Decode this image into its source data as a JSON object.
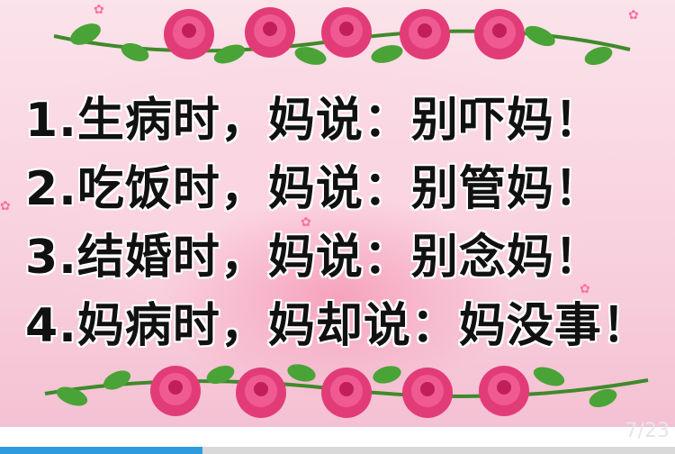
{
  "slide": {
    "lines": [
      "1.生病时，妈说：别吓妈！",
      "2.吃饭时，妈说：别管妈！",
      "3.结婚时，妈说：别念妈！",
      "4.妈病时，妈却说：妈没事！"
    ],
    "decoration": "pink-rose-garland",
    "colors": {
      "rose": "#e23c78",
      "leaf": "#3f9a2e",
      "background": "#f8d0de",
      "text": "#111111"
    }
  },
  "player": {
    "page_counter": "7/23",
    "progress_fraction": 0.3,
    "progress_color": "#2e9bdf"
  }
}
